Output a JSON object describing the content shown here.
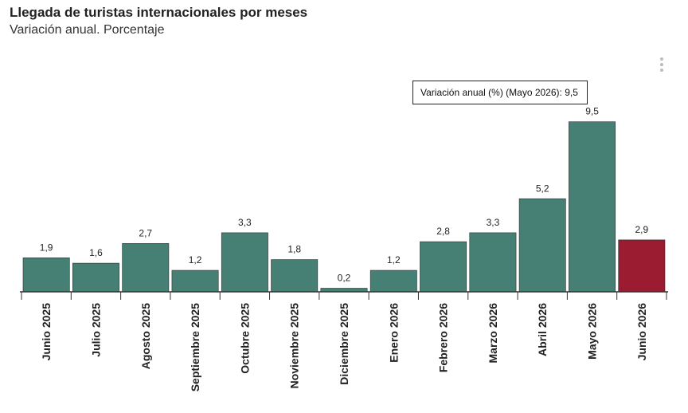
{
  "title": "Llegada de turistas internacionales por meses",
  "subtitle": "Variación anual. Porcentaje",
  "tooltip": {
    "text": "Variación anual (%) (Mayo 2026): 9,5"
  },
  "colors": {
    "bar": "#467F74",
    "highlight": "#9B1B30",
    "axis": "#333333"
  },
  "icons": {
    "menu": "vertical-ellipsis-icon"
  },
  "chart_data": {
    "type": "bar",
    "title": "Llegada de turistas internacionales por meses",
    "subtitle": "Variación anual. Porcentaje",
    "xlabel": "",
    "ylabel": "",
    "categories": [
      "Junio 2025",
      "Julio 2025",
      "Agosto 2025",
      "Septiembre 2025",
      "Octubre 2025",
      "Noviembre 2025",
      "Diciembre 2025",
      "Enero 2026",
      "Febrero 2026",
      "Marzo 2026",
      "Abril 2026",
      "Mayo 2026",
      "Junio 2026"
    ],
    "values": [
      1.9,
      1.6,
      2.7,
      1.2,
      3.3,
      1.8,
      0.2,
      1.2,
      2.8,
      3.3,
      5.2,
      9.5,
      2.9
    ],
    "data_labels": [
      "1,9",
      "1,6",
      "2,7",
      "1,2",
      "3,3",
      "1,8",
      "0,2",
      "1,2",
      "2,8",
      "3,3",
      "5,2",
      "9,5",
      "2,9"
    ],
    "highlight_index": 12,
    "ylim": [
      0,
      10.2
    ],
    "grid": false,
    "legend": "none"
  }
}
